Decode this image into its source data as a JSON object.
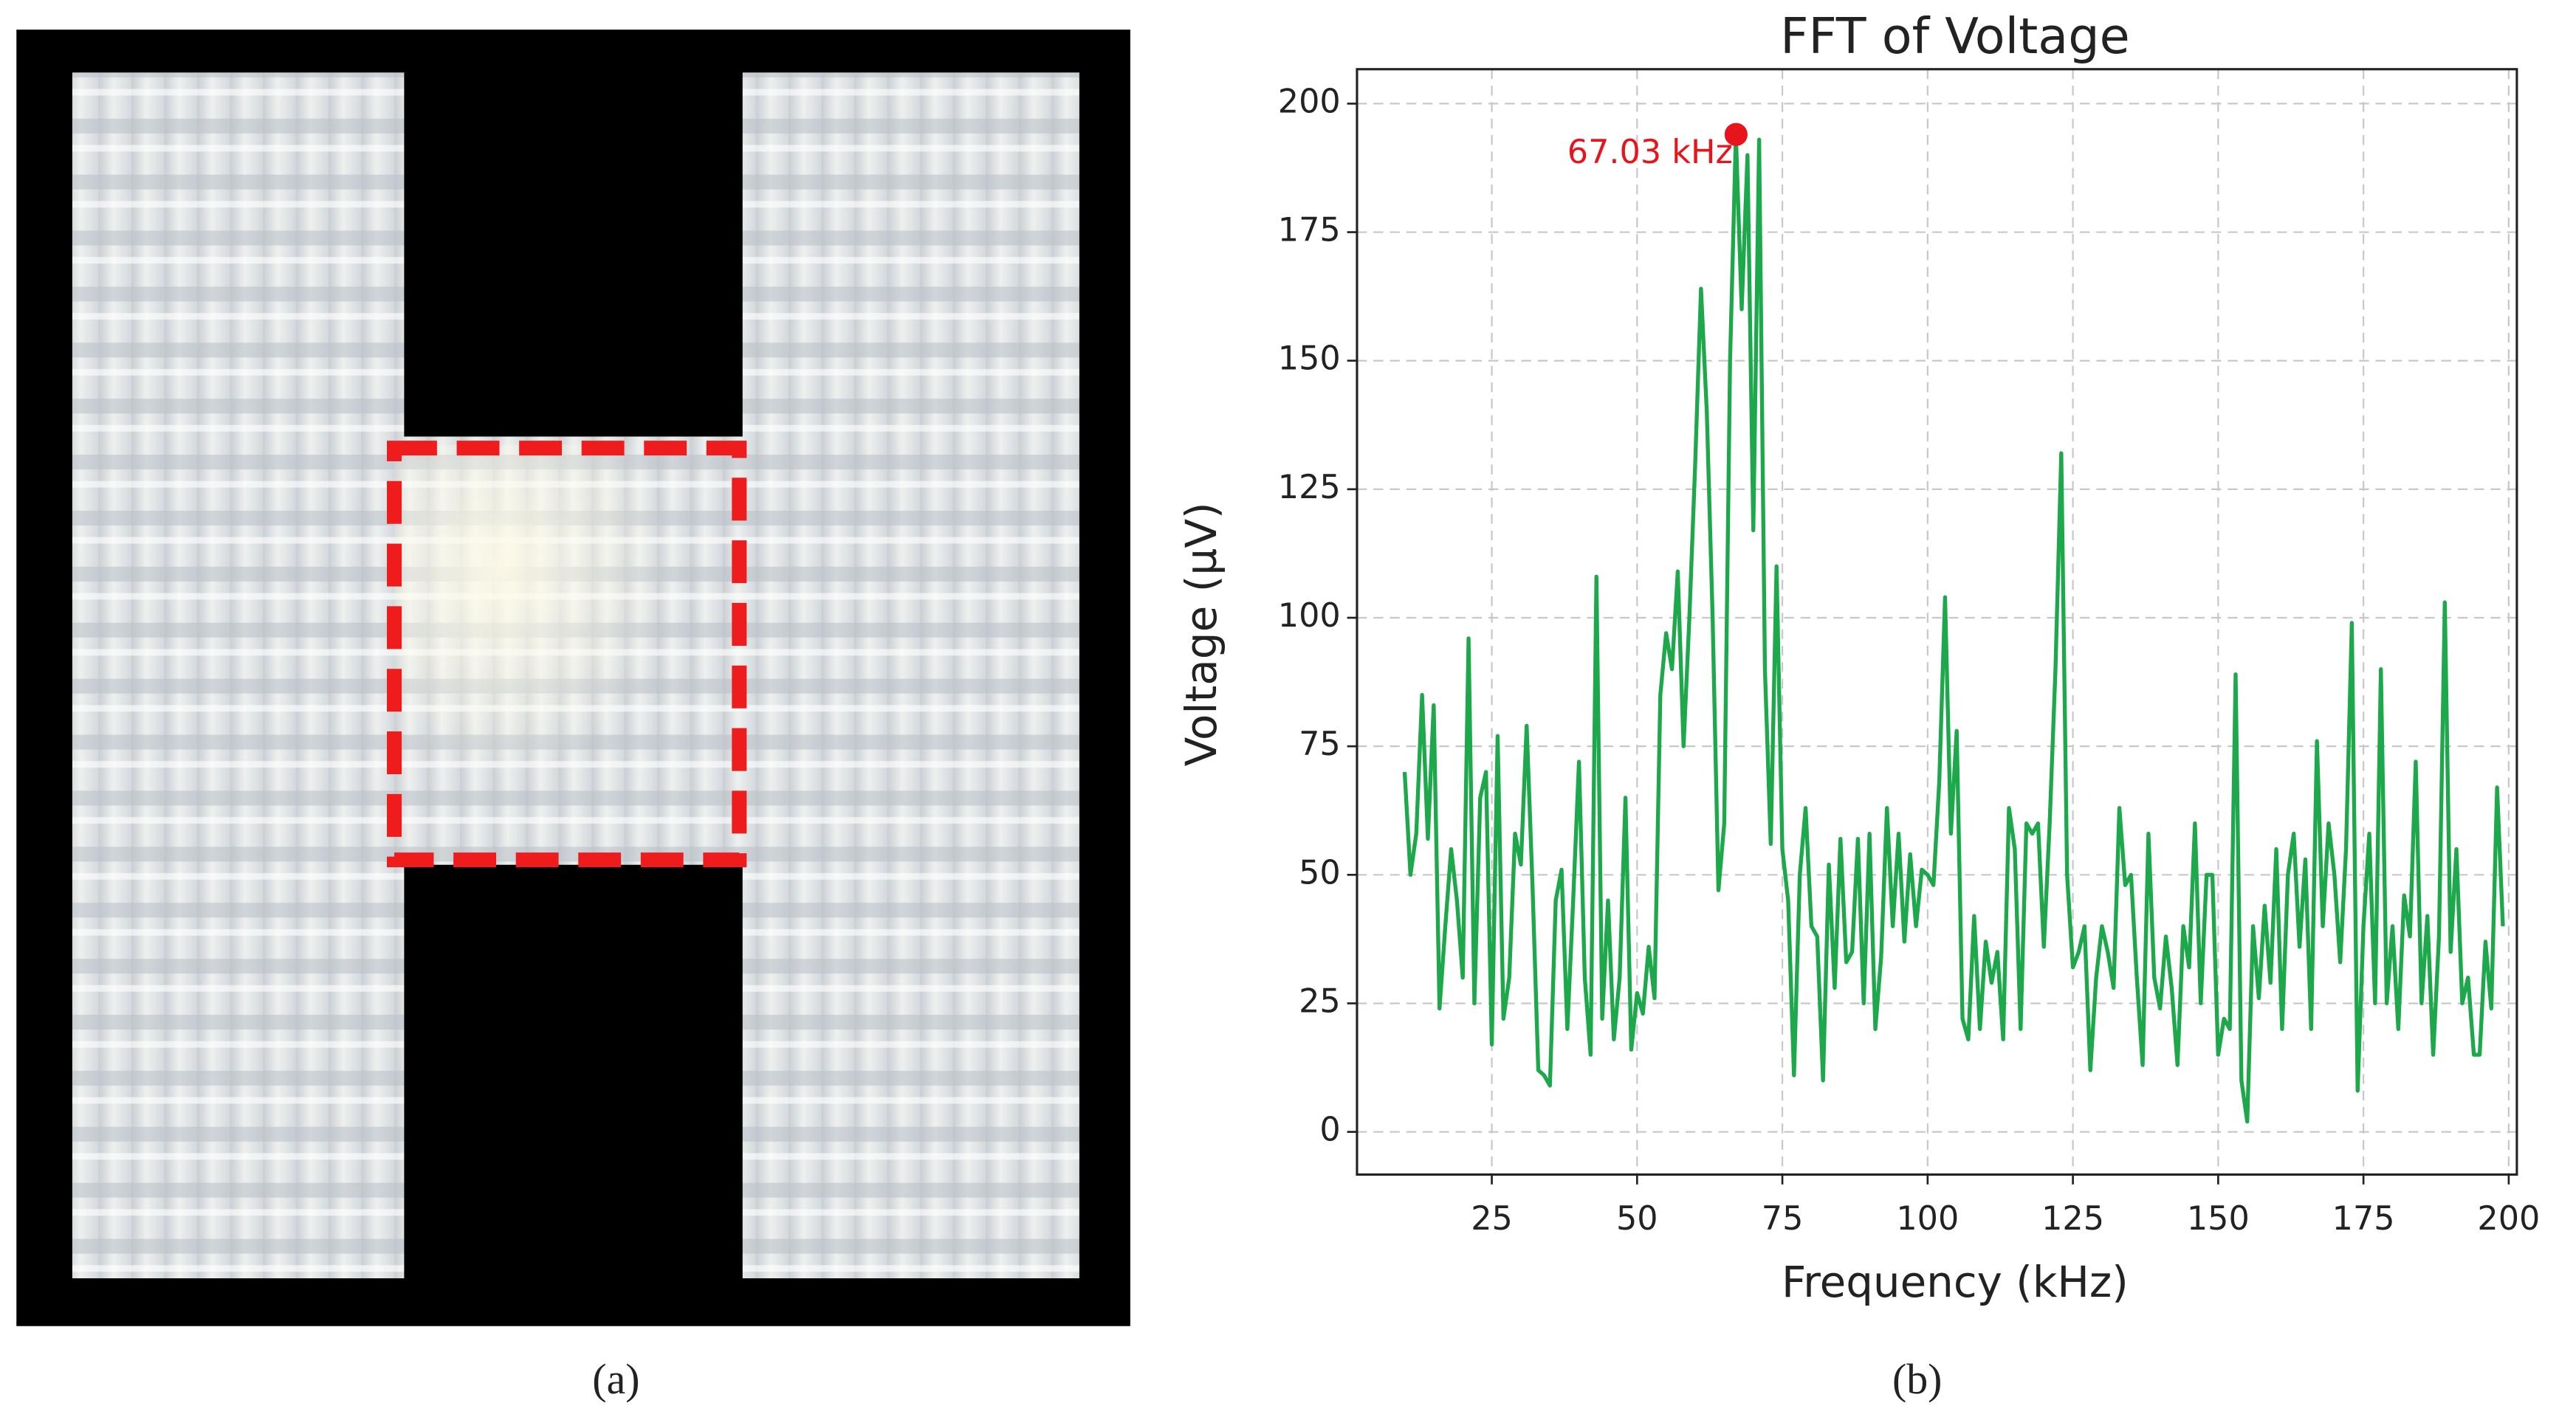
{
  "panel_labels": [
    "(a)",
    "(b)"
  ],
  "chart_data": {
    "type": "line",
    "title": "FFT of Voltage",
    "xlabel": "Frequency (kHz)",
    "ylabel": "Voltage (µV)",
    "x": [
      10,
      11,
      12,
      13,
      14,
      15,
      16,
      17,
      18,
      19,
      20,
      21,
      22,
      23,
      24,
      25,
      26,
      27,
      28,
      29,
      30,
      31,
      32,
      33,
      34,
      35,
      36,
      37,
      38,
      39,
      40,
      41,
      42,
      43,
      44,
      45,
      46,
      47,
      48,
      49,
      50,
      51,
      52,
      53,
      54,
      55,
      56,
      57,
      58,
      59,
      60,
      61,
      62,
      63,
      64,
      65,
      66,
      67,
      68,
      69,
      70,
      71,
      72,
      73,
      74,
      75,
      76,
      77,
      78,
      79,
      80,
      81,
      82,
      83,
      84,
      85,
      86,
      87,
      88,
      89,
      90,
      91,
      92,
      93,
      94,
      95,
      96,
      97,
      98,
      99,
      100,
      101,
      102,
      103,
      104,
      105,
      106,
      107,
      108,
      109,
      110,
      111,
      112,
      113,
      114,
      115,
      116,
      117,
      118,
      119,
      120,
      121,
      122,
      123,
      124,
      125,
      126,
      127,
      128,
      129,
      130,
      131,
      132,
      133,
      134,
      135,
      136,
      137,
      138,
      139,
      140,
      141,
      142,
      143,
      144,
      145,
      146,
      147,
      148,
      149,
      150,
      151,
      152,
      153,
      154,
      155,
      156,
      157,
      158,
      159,
      160,
      161,
      162,
      163,
      164,
      165,
      166,
      167,
      168,
      169,
      170,
      171,
      172,
      173,
      174,
      175,
      176,
      177,
      178,
      179,
      180,
      181,
      182,
      183,
      184,
      185,
      186,
      187,
      188,
      189,
      190,
      191,
      192,
      193,
      194,
      195,
      196,
      197,
      198,
      199
    ],
    "values": [
      70,
      50,
      58,
      85,
      57,
      83,
      24,
      40,
      55,
      45,
      30,
      96,
      25,
      65,
      70,
      17,
      77,
      22,
      30,
      58,
      52,
      79,
      48,
      12,
      11,
      9,
      45,
      51,
      20,
      45,
      72,
      30,
      15,
      108,
      22,
      45,
      18,
      30,
      65,
      16,
      27,
      23,
      36,
      26,
      85,
      97,
      90,
      109,
      75,
      100,
      130,
      164,
      140,
      100,
      47,
      60,
      150,
      194,
      160,
      190,
      117,
      193,
      90,
      56,
      110,
      55,
      45,
      11,
      50,
      63,
      40,
      38,
      10,
      52,
      28,
      57,
      33,
      35,
      57,
      25,
      58,
      20,
      34,
      63,
      40,
      58,
      37,
      54,
      40,
      51,
      50,
      48,
      68,
      104,
      58,
      78,
      22,
      18,
      42,
      20,
      37,
      29,
      35,
      18,
      63,
      55,
      20,
      60,
      58,
      60,
      36,
      60,
      90,
      132,
      50,
      32,
      35,
      40,
      12,
      30,
      40,
      35,
      28,
      63,
      48,
      50,
      30,
      13,
      58,
      30,
      24,
      38,
      28,
      13,
      40,
      32,
      60,
      25,
      50,
      50,
      15,
      22,
      20,
      89,
      10,
      2,
      40,
      26,
      44,
      29,
      55,
      20,
      50,
      58,
      36,
      53,
      20,
      76,
      40,
      60,
      50,
      33,
      55,
      99,
      8,
      40,
      58,
      25,
      90,
      25,
      40,
      20,
      46,
      38,
      72,
      25,
      42,
      15,
      38,
      103,
      35,
      55,
      25,
      30,
      15,
      15,
      37,
      24,
      67,
      40
    ],
    "color": "#1ea84c",
    "annotation": {
      "text": "67.03 kHz",
      "x": 67.03,
      "y": 194,
      "color": "#e8141b"
    },
    "xlim": [
      1.8,
      201.4
    ],
    "ylim": [
      -8.3,
      206.7
    ],
    "xticks": [
      25,
      50,
      75,
      100,
      125,
      150,
      175,
      200
    ],
    "yticks": [
      0,
      25,
      50,
      75,
      100,
      125,
      150,
      175,
      200
    ],
    "grid": true
  }
}
